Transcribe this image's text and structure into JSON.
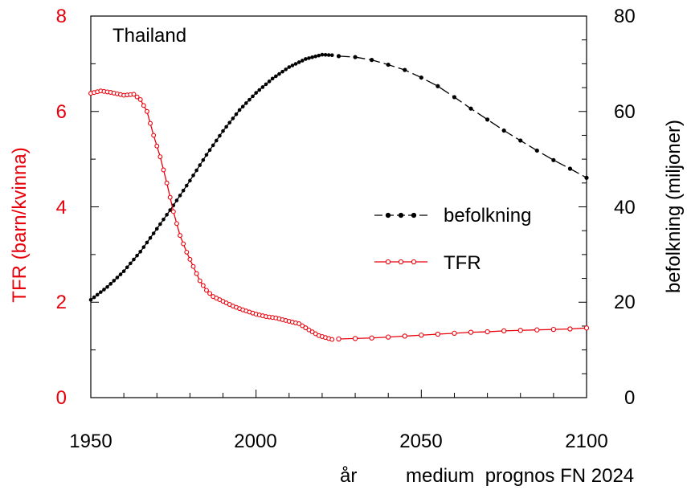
{
  "colors": {
    "tfr": "#e8000b",
    "population": "#000000",
    "axis": "#000000"
  },
  "chart_data": {
    "type": "line",
    "title": "Thailand",
    "xlabel": "år",
    "caption": "medium  prognos FN 2024",
    "xlim": [
      1950,
      2100
    ],
    "x_ticks": [
      "1950",
      "2000",
      "2050",
      "2100"
    ],
    "y_left": {
      "label": "TFR (barn/kvinna)",
      "lim": [
        0,
        8
      ],
      "ticks": [
        "0",
        "2",
        "4",
        "6",
        "8"
      ]
    },
    "y_right": {
      "label": "befolkning (miljoner)",
      "lim": [
        0,
        80
      ],
      "ticks": [
        "0",
        "20",
        "40",
        "60",
        "80"
      ]
    },
    "legend": {
      "position": "center-right"
    },
    "series": [
      {
        "name": "befolkning",
        "axis": "right",
        "historical": {
          "x": [
            1950,
            1955,
            1960,
            1965,
            1970,
            1975,
            1980,
            1985,
            1990,
            1995,
            2000,
            2005,
            2010,
            2015,
            2020,
            2023
          ],
          "y": [
            20.5,
            23.2,
            26.5,
            30.6,
            35.4,
            40.3,
            45.5,
            50.9,
            55.9,
            60.3,
            63.9,
            66.9,
            69.3,
            71.0,
            71.9,
            71.8
          ]
        },
        "projection": {
          "x": [
            2025,
            2030,
            2035,
            2040,
            2045,
            2050,
            2055,
            2060,
            2065,
            2070,
            2075,
            2080,
            2085,
            2090,
            2095,
            2100
          ],
          "y": [
            71.6,
            71.4,
            70.8,
            69.8,
            68.7,
            67.1,
            65.3,
            63.0,
            60.6,
            58.3,
            56.0,
            53.9,
            51.8,
            49.8,
            48.0,
            46.1
          ]
        }
      },
      {
        "name": "TFR",
        "axis": "left",
        "historical": {
          "x": [
            1950,
            1953,
            1956,
            1960,
            1963,
            1965,
            1967,
            1969,
            1971,
            1973,
            1975,
            1977,
            1979,
            1981,
            1983,
            1985,
            1987,
            1990,
            1993,
            1996,
            2000,
            2003,
            2006,
            2010,
            2013,
            2016,
            2019,
            2023
          ],
          "y": [
            6.38,
            6.43,
            6.4,
            6.34,
            6.36,
            6.25,
            6.0,
            5.5,
            5.05,
            4.5,
            3.9,
            3.4,
            3.05,
            2.75,
            2.45,
            2.25,
            2.12,
            2.02,
            1.92,
            1.84,
            1.75,
            1.7,
            1.67,
            1.6,
            1.55,
            1.42,
            1.3,
            1.22
          ]
        },
        "projection": {
          "x": [
            2025,
            2030,
            2035,
            2040,
            2045,
            2050,
            2055,
            2060,
            2065,
            2070,
            2075,
            2080,
            2085,
            2090,
            2095,
            2100
          ],
          "y": [
            1.23,
            1.24,
            1.25,
            1.27,
            1.29,
            1.31,
            1.33,
            1.35,
            1.37,
            1.38,
            1.4,
            1.41,
            1.42,
            1.43,
            1.44,
            1.46
          ]
        }
      }
    ]
  }
}
